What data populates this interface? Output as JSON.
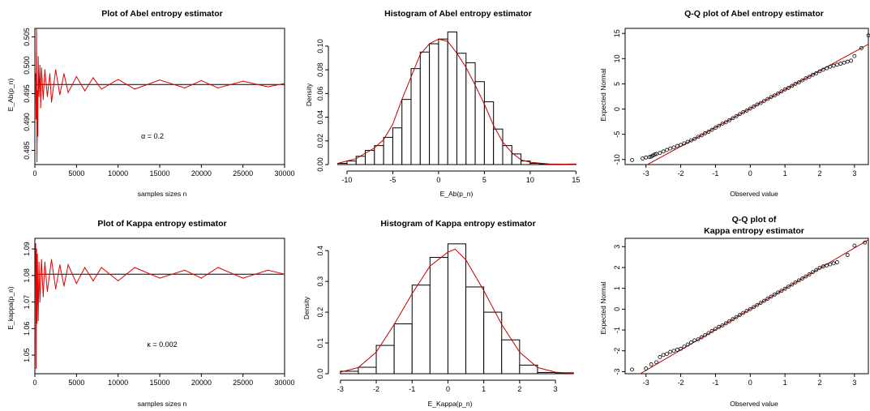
{
  "figure": {
    "panels": [
      {
        "title": "Plot of Abel entropy estimator",
        "subtitle": "",
        "xlabel": "samples sizes n",
        "ylabel": "E_Ab(p_n)",
        "annotation": "α = 0.2"
      },
      {
        "title": "Histogram of Abel entropy estimator",
        "subtitle": "",
        "xlabel": "E_Ab(p_n)",
        "ylabel": "Density",
        "annotation": ""
      },
      {
        "title": "Q-Q plot of Abel entropy estimator",
        "subtitle": "",
        "xlabel": "Observed value",
        "ylabel": "Expected Normal",
        "annotation": ""
      },
      {
        "title": "Plot of Kappa entropy estimator",
        "subtitle": "",
        "xlabel": "samples sizes n",
        "ylabel": "E_kappa(p_n)",
        "annotation": "κ = 0.002"
      },
      {
        "title": "Histogram of Kappa entropy estimator",
        "subtitle": "",
        "xlabel": "E_Kappa(p_n)",
        "ylabel": "Density",
        "annotation": ""
      },
      {
        "title": "Q-Q plot of",
        "subtitle": "Kappa entropy estimator",
        "xlabel": "Observed value",
        "ylabel": "Expected Normal",
        "annotation": ""
      }
    ]
  },
  "chart_data": [
    {
      "type": "line",
      "title": "Plot of Abel entropy estimator",
      "xlabel": "samples sizes n",
      "ylabel": "E_Ab(p_n)",
      "annotation": "α = 0.2",
      "xlim": [
        0,
        30000
      ],
      "ylim": [
        0.4825,
        0.5065
      ],
      "xticks": [
        0,
        5000,
        10000,
        15000,
        20000,
        25000,
        30000
      ],
      "yticks": [
        0.485,
        0.49,
        0.495,
        0.5,
        0.505
      ],
      "reference_line": 0.4966,
      "line_color": "#e00000",
      "series_points": [
        [
          50,
          0.4966
        ],
        [
          100,
          0.4985
        ],
        [
          150,
          0.4905
        ],
        [
          200,
          0.5065
        ],
        [
          250,
          0.483
        ],
        [
          300,
          0.4955
        ],
        [
          350,
          0.4875
        ],
        [
          400,
          0.5015
        ],
        [
          500,
          0.4945
        ],
        [
          600,
          0.5
        ],
        [
          700,
          0.4925
        ],
        [
          800,
          0.4995
        ],
        [
          1000,
          0.494
        ],
        [
          1200,
          0.4992
        ],
        [
          1500,
          0.4945
        ],
        [
          1800,
          0.4985
        ],
        [
          2000,
          0.4935
        ],
        [
          2500,
          0.4992
        ],
        [
          3000,
          0.4948
        ],
        [
          3500,
          0.4985
        ],
        [
          4000,
          0.4952
        ],
        [
          5000,
          0.498
        ],
        [
          6000,
          0.4955
        ],
        [
          7000,
          0.4978
        ],
        [
          8000,
          0.4958
        ],
        [
          10000,
          0.4975
        ],
        [
          12000,
          0.4958
        ],
        [
          15000,
          0.4974
        ],
        [
          18000,
          0.496
        ],
        [
          20000,
          0.4973
        ],
        [
          22000,
          0.496
        ],
        [
          25000,
          0.4972
        ],
        [
          28000,
          0.4962
        ],
        [
          30000,
          0.4968
        ]
      ]
    },
    {
      "type": "bar",
      "title": "Histogram of Abel entropy estimator",
      "xlabel": "E_Ab(p_n)",
      "ylabel": "Density",
      "xlim": [
        -11.5,
        15.5
      ],
      "ylim": [
        0,
        0.115
      ],
      "xticks": [
        -10,
        -5,
        0,
        5,
        10,
        15
      ],
      "yticks": [
        0.0,
        0.02,
        0.04,
        0.06,
        0.08,
        0.1
      ],
      "bin_edges": [
        -11,
        -10,
        -9,
        -8,
        -7,
        -6,
        -5,
        -4,
        -3,
        -2,
        -1,
        0,
        1,
        2,
        3,
        4,
        5,
        6,
        7,
        8,
        9,
        10,
        11,
        12,
        13,
        14,
        15
      ],
      "values": [
        0.001,
        0.003,
        0.007,
        0.012,
        0.016,
        0.023,
        0.031,
        0.055,
        0.081,
        0.095,
        0.102,
        0.106,
        0.112,
        0.094,
        0.086,
        0.07,
        0.053,
        0.03,
        0.016,
        0.009,
        0.003,
        0.001,
        0.0005,
        0.0003,
        0.0002,
        0.0004
      ],
      "density_x": [
        -11,
        -9,
        -7,
        -6,
        -5,
        -4,
        -3,
        -2,
        -1,
        0,
        1,
        2,
        3,
        4,
        5,
        6,
        7,
        8,
        9,
        10,
        12,
        15
      ],
      "density_y": [
        0.001,
        0.005,
        0.014,
        0.021,
        0.034,
        0.055,
        0.074,
        0.093,
        0.102,
        0.106,
        0.104,
        0.094,
        0.082,
        0.067,
        0.051,
        0.033,
        0.019,
        0.01,
        0.004,
        0.002,
        0.0005,
        0.0002
      ],
      "density_color": "#c00000"
    },
    {
      "type": "scatter",
      "title": "Q-Q plot of Abel entropy estimator",
      "xlabel": "Observed value",
      "ylabel": "Expected Normal",
      "xlim": [
        -3.6,
        3.4
      ],
      "ylim": [
        -11,
        16
      ],
      "xticks": [
        -3,
        -2,
        -1,
        0,
        1,
        2,
        3
      ],
      "yticks": [
        -10,
        -5,
        0,
        5,
        10,
        15
      ],
      "reference_line": {
        "intercept": 0.1,
        "slope": 3.75
      },
      "line_color": "#c00000",
      "points": [
        [
          -3.4,
          -10.1
        ],
        [
          -3.1,
          -9.8
        ],
        [
          -3.0,
          -9.6
        ],
        [
          -2.9,
          -9.5
        ],
        [
          -2.85,
          -9.4
        ],
        [
          -2.8,
          -9.2
        ],
        [
          -2.75,
          -9.0
        ],
        [
          -2.7,
          -8.9
        ],
        [
          -2.6,
          -8.7
        ],
        [
          -2.5,
          -8.4
        ],
        [
          -2.4,
          -8.1
        ],
        [
          -2.3,
          -7.8
        ],
        [
          -2.2,
          -7.6
        ],
        [
          -2.1,
          -7.3
        ],
        [
          -2.0,
          -7.1
        ],
        [
          -1.9,
          -6.8
        ],
        [
          -1.8,
          -6.5
        ],
        [
          -1.7,
          -6.2
        ],
        [
          -1.6,
          -5.9
        ],
        [
          -1.5,
          -5.5
        ],
        [
          -1.4,
          -5.2
        ],
        [
          -1.3,
          -4.8
        ],
        [
          -1.2,
          -4.5
        ],
        [
          -1.1,
          -4.1
        ],
        [
          -1.0,
          -3.7
        ],
        [
          -0.9,
          -3.3
        ],
        [
          -0.8,
          -2.9
        ],
        [
          -0.7,
          -2.6
        ],
        [
          -0.6,
          -2.2
        ],
        [
          -0.5,
          -1.8
        ],
        [
          -0.4,
          -1.4
        ],
        [
          -0.3,
          -1.0
        ],
        [
          -0.2,
          -0.6
        ],
        [
          -0.1,
          -0.3
        ],
        [
          0.0,
          0.1
        ],
        [
          0.1,
          0.5
        ],
        [
          0.2,
          0.9
        ],
        [
          0.3,
          1.2
        ],
        [
          0.4,
          1.6
        ],
        [
          0.5,
          2.0
        ],
        [
          0.6,
          2.4
        ],
        [
          0.7,
          2.7
        ],
        [
          0.8,
          3.1
        ],
        [
          0.9,
          3.5
        ],
        [
          1.0,
          3.9
        ],
        [
          1.1,
          4.2
        ],
        [
          1.2,
          4.6
        ],
        [
          1.3,
          5.0
        ],
        [
          1.4,
          5.3
        ],
        [
          1.5,
          5.7
        ],
        [
          1.6,
          6.1
        ],
        [
          1.7,
          6.4
        ],
        [
          1.8,
          6.8
        ],
        [
          1.9,
          7.1
        ],
        [
          2.0,
          7.5
        ],
        [
          2.1,
          7.8
        ],
        [
          2.2,
          8.1
        ],
        [
          2.3,
          8.4
        ],
        [
          2.4,
          8.6
        ],
        [
          2.5,
          8.8
        ],
        [
          2.6,
          9.0
        ],
        [
          2.7,
          9.2
        ],
        [
          2.8,
          9.4
        ],
        [
          2.9,
          9.6
        ],
        [
          3.0,
          10.5
        ],
        [
          3.2,
          12.1
        ],
        [
          3.4,
          14.6
        ]
      ]
    },
    {
      "type": "line",
      "title": "Plot of Kappa entropy estimator",
      "xlabel": "samples sizes n",
      "ylabel": "E_kappa(p_n)",
      "annotation": "κ = 0.002",
      "xlim": [
        0,
        30000
      ],
      "ylim": [
        1.043,
        1.094
      ],
      "xticks": [
        0,
        5000,
        10000,
        15000,
        20000,
        25000,
        30000
      ],
      "yticks": [
        1.05,
        1.06,
        1.07,
        1.08,
        1.09
      ],
      "reference_line": 1.0805,
      "line_color": "#e00000",
      "series_points": [
        [
          50,
          1.075
        ],
        [
          100,
          1.092
        ],
        [
          150,
          1.045
        ],
        [
          200,
          1.09
        ],
        [
          250,
          1.062
        ],
        [
          300,
          1.088
        ],
        [
          400,
          1.063
        ],
        [
          500,
          1.085
        ],
        [
          600,
          1.07
        ],
        [
          800,
          1.086
        ],
        [
          1000,
          1.072
        ],
        [
          1200,
          1.085
        ],
        [
          1500,
          1.074
        ],
        [
          2000,
          1.086
        ],
        [
          2500,
          1.075
        ],
        [
          3000,
          1.084
        ],
        [
          3500,
          1.076
        ],
        [
          4000,
          1.084
        ],
        [
          5000,
          1.077
        ],
        [
          6000,
          1.083
        ],
        [
          7000,
          1.078
        ],
        [
          8000,
          1.083
        ],
        [
          10000,
          1.078
        ],
        [
          12000,
          1.083
        ],
        [
          15000,
          1.079
        ],
        [
          18000,
          1.082
        ],
        [
          20000,
          1.079
        ],
        [
          22000,
          1.083
        ],
        [
          25000,
          1.079
        ],
        [
          28000,
          1.082
        ],
        [
          30000,
          1.0805
        ]
      ]
    },
    {
      "type": "bar",
      "title": "Histogram of Kappa entropy estimator",
      "xlabel": "E_Kappa(p_n)",
      "ylabel": "Density",
      "xlim": [
        -3.2,
        3.7
      ],
      "ylim": [
        0,
        0.44
      ],
      "xticks": [
        -3,
        -2,
        -1,
        0,
        1,
        2,
        3
      ],
      "yticks": [
        0.0,
        0.1,
        0.2,
        0.3,
        0.4
      ],
      "bin_edges": [
        -3.0,
        -2.5,
        -2.0,
        -1.5,
        -1.0,
        -0.5,
        0.0,
        0.5,
        1.0,
        1.5,
        2.0,
        2.5,
        3.0,
        3.5
      ],
      "values": [
        0.008,
        0.021,
        0.092,
        0.162,
        0.288,
        0.378,
        0.422,
        0.282,
        0.2,
        0.11,
        0.028,
        0.004,
        0.003
      ],
      "density_x": [
        -3.0,
        -2.5,
        -2.0,
        -1.5,
        -1.0,
        -0.5,
        0.0,
        0.2,
        0.5,
        1.0,
        1.5,
        2.0,
        2.5,
        3.0,
        3.5
      ],
      "density_y": [
        0.005,
        0.02,
        0.07,
        0.16,
        0.26,
        0.35,
        0.395,
        0.405,
        0.37,
        0.27,
        0.16,
        0.07,
        0.02,
        0.005,
        0.001
      ],
      "density_color": "#c00000"
    },
    {
      "type": "scatter",
      "title": "Q-Q plot of Kappa entropy estimator",
      "xlabel": "Observed value",
      "ylabel": "Expected Normal",
      "xlim": [
        -3.6,
        3.4
      ],
      "ylim": [
        -3.1,
        3.4
      ],
      "xticks": [
        -3,
        -2,
        -1,
        0,
        1,
        2,
        3
      ],
      "yticks": [
        -3,
        -2,
        -1,
        0,
        1,
        2,
        3
      ],
      "reference_line": {
        "intercept": 0.0,
        "slope": 0.98
      },
      "line_color": "#c00000",
      "points": [
        [
          -3.4,
          -2.9
        ],
        [
          -3.0,
          -2.85
        ],
        [
          -2.85,
          -2.65
        ],
        [
          -2.7,
          -2.55
        ],
        [
          -2.6,
          -2.3
        ],
        [
          -2.5,
          -2.2
        ],
        [
          -2.4,
          -2.15
        ],
        [
          -2.3,
          -2.05
        ],
        [
          -2.2,
          -2.0
        ],
        [
          -2.1,
          -1.95
        ],
        [
          -2.0,
          -1.9
        ],
        [
          -1.9,
          -1.8
        ],
        [
          -1.8,
          -1.7
        ],
        [
          -1.7,
          -1.6
        ],
        [
          -1.6,
          -1.5
        ],
        [
          -1.5,
          -1.45
        ],
        [
          -1.4,
          -1.35
        ],
        [
          -1.3,
          -1.25
        ],
        [
          -1.2,
          -1.15
        ],
        [
          -1.1,
          -1.05
        ],
        [
          -1.0,
          -0.95
        ],
        [
          -0.9,
          -0.85
        ],
        [
          -0.8,
          -0.78
        ],
        [
          -0.7,
          -0.68
        ],
        [
          -0.6,
          -0.58
        ],
        [
          -0.5,
          -0.48
        ],
        [
          -0.4,
          -0.38
        ],
        [
          -0.3,
          -0.28
        ],
        [
          -0.2,
          -0.18
        ],
        [
          -0.1,
          -0.08
        ],
        [
          0.0,
          0.0
        ],
        [
          0.1,
          0.1
        ],
        [
          0.2,
          0.2
        ],
        [
          0.3,
          0.3
        ],
        [
          0.4,
          0.4
        ],
        [
          0.5,
          0.5
        ],
        [
          0.6,
          0.6
        ],
        [
          0.7,
          0.7
        ],
        [
          0.8,
          0.8
        ],
        [
          0.9,
          0.88
        ],
        [
          1.0,
          0.98
        ],
        [
          1.1,
          1.08
        ],
        [
          1.2,
          1.18
        ],
        [
          1.3,
          1.28
        ],
        [
          1.4,
          1.38
        ],
        [
          1.5,
          1.47
        ],
        [
          1.6,
          1.57
        ],
        [
          1.7,
          1.67
        ],
        [
          1.8,
          1.78
        ],
        [
          1.9,
          1.88
        ],
        [
          2.0,
          1.98
        ],
        [
          2.1,
          2.05
        ],
        [
          2.2,
          2.1
        ],
        [
          2.3,
          2.15
        ],
        [
          2.4,
          2.2
        ],
        [
          2.5,
          2.25
        ],
        [
          2.8,
          2.6
        ],
        [
          3.0,
          3.05
        ],
        [
          3.3,
          3.2
        ]
      ]
    }
  ]
}
